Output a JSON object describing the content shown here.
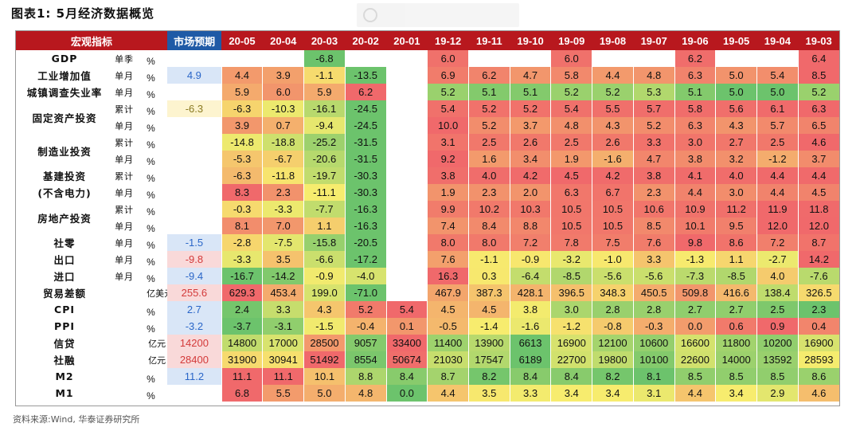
{
  "title": "图表1:  5月经济数据概览",
  "source": "资料来源:Wind, 华泰证券研究所",
  "header": {
    "indicator": "宏观指标",
    "expectation": "市场预期",
    "periods": [
      "20-05",
      "20-04",
      "20-03",
      "20-02",
      "20-01",
      "19-12",
      "19-11",
      "19-10",
      "19-09",
      "19-08",
      "19-07",
      "19-06",
      "19-05",
      "19-04",
      "19-03"
    ]
  },
  "colors": {
    "header_red": "#b8181e",
    "header_blue": "#1f5aa6",
    "low_green": "#6cc36c",
    "mid_yellow": "#f7ec6e",
    "high_red": "#f0696b",
    "expect_blue_bg": "#d9e6f7",
    "expect_red_bg": "#f9d9d9",
    "expect_yellow_bg": "#fdf4cf",
    "expect_text_blue": "#2a66c8",
    "expect_text_red": "#d33a3a",
    "expect_text_olive": "#8a7a22"
  },
  "rows": [
    {
      "indicator": "GDP",
      "freq": "单季",
      "unit": "%",
      "expect": "",
      "values": [
        "",
        "",
        "-6.8",
        "",
        "",
        "6.0",
        "",
        "",
        "6.0",
        "",
        "",
        "6.2",
        "",
        "",
        "6.4"
      ]
    },
    {
      "indicator": "工业增加值",
      "freq": "单月",
      "unit": "%",
      "expect": "4.9",
      "values": [
        "4.4",
        "3.9",
        "-1.1",
        "-13.5",
        "",
        "6.9",
        "6.2",
        "4.7",
        "5.8",
        "4.4",
        "4.8",
        "6.3",
        "5.0",
        "5.4",
        "8.5"
      ]
    },
    {
      "indicator": "城镇调查失业率",
      "freq": "单月",
      "unit": "%",
      "expect": "",
      "values": [
        "5.9",
        "6.0",
        "5.9",
        "6.2",
        "",
        "5.2",
        "5.1",
        "5.1",
        "5.2",
        "5.2",
        "5.3",
        "5.1",
        "5.0",
        "5.0",
        "5.2"
      ]
    },
    {
      "indicator": "固定资产投资",
      "freq": "累计",
      "unit": "%",
      "expect": "-6.3",
      "values": [
        "-6.3",
        "-10.3",
        "-16.1",
        "-24.5",
        "",
        "5.4",
        "5.2",
        "5.2",
        "5.4",
        "5.5",
        "5.7",
        "5.8",
        "5.6",
        "6.1",
        "6.3"
      ]
    },
    {
      "indicator": "",
      "freq": "单月",
      "unit": "%",
      "expect": "",
      "values": [
        "3.9",
        "0.7",
        "-9.4",
        "-24.5",
        "",
        "10.0",
        "5.2",
        "3.7",
        "4.8",
        "4.3",
        "5.2",
        "6.3",
        "4.3",
        "5.7",
        "6.5"
      ]
    },
    {
      "indicator": "制造业投资",
      "freq": "累计",
      "unit": "%",
      "expect": "",
      "values": [
        "-14.8",
        "-18.8",
        "-25.2",
        "-31.5",
        "",
        "3.1",
        "2.5",
        "2.6",
        "2.5",
        "2.6",
        "3.3",
        "3.0",
        "2.7",
        "2.5",
        "4.6"
      ]
    },
    {
      "indicator": "",
      "freq": "单月",
      "unit": "%",
      "expect": "",
      "values": [
        "-5.3",
        "-6.7",
        "-20.6",
        "-31.5",
        "",
        "9.2",
        "1.6",
        "3.4",
        "1.9",
        "-1.6",
        "4.7",
        "3.8",
        "3.2",
        "-1.2",
        "3.7"
      ]
    },
    {
      "indicator": "基建投资",
      "freq": "累计",
      "unit": "%",
      "expect": "",
      "values": [
        "-6.3",
        "-11.8",
        "-19.7",
        "-30.3",
        "",
        "3.8",
        "4.0",
        "4.2",
        "4.5",
        "4.2",
        "3.8",
        "4.1",
        "4.0",
        "4.4",
        "4.4"
      ]
    },
    {
      "indicator": "(不含电力)",
      "freq": "单月",
      "unit": "%",
      "expect": "",
      "values": [
        "8.3",
        "2.3",
        "-11.1",
        "-30.3",
        "",
        "1.9",
        "2.3",
        "2.0",
        "6.3",
        "6.7",
        "2.3",
        "4.4",
        "3.0",
        "4.4",
        "4.5"
      ]
    },
    {
      "indicator": "房地产投资",
      "freq": "累计",
      "unit": "%",
      "expect": "",
      "values": [
        "-0.3",
        "-3.3",
        "-7.7",
        "-16.3",
        "",
        "9.9",
        "10.2",
        "10.3",
        "10.5",
        "10.5",
        "10.6",
        "10.9",
        "11.2",
        "11.9",
        "11.8"
      ]
    },
    {
      "indicator": "",
      "freq": "单月",
      "unit": "%",
      "expect": "",
      "values": [
        "8.1",
        "7.0",
        "1.1",
        "-16.3",
        "",
        "7.4",
        "8.4",
        "8.8",
        "10.5",
        "10.5",
        "8.5",
        "10.1",
        "9.5",
        "12.0",
        "12.0"
      ]
    },
    {
      "indicator": "社零",
      "freq": "单月",
      "unit": "%",
      "expect": "-1.5",
      "values": [
        "-2.8",
        "-7.5",
        "-15.8",
        "-20.5",
        "",
        "8.0",
        "8.0",
        "7.2",
        "7.8",
        "7.5",
        "7.6",
        "9.8",
        "8.6",
        "7.2",
        "8.7"
      ]
    },
    {
      "indicator": "出口",
      "freq": "单月",
      "unit": "%",
      "expect": "-9.8",
      "values": [
        "-3.3",
        "3.5",
        "-6.6",
        "-17.2",
        "",
        "7.6",
        "-1.1",
        "-0.9",
        "-3.2",
        "-1.0",
        "3.3",
        "-1.3",
        "1.1",
        "-2.7",
        "14.2"
      ]
    },
    {
      "indicator": "进口",
      "freq": "单月",
      "unit": "%",
      "expect": "-9.4",
      "values": [
        "-16.7",
        "-14.2",
        "-0.9",
        "-4.0",
        "",
        "16.3",
        "0.3",
        "-6.4",
        "-8.5",
        "-5.6",
        "-5.6",
        "-7.3",
        "-8.5",
        "4.0",
        "-7.6"
      ]
    },
    {
      "indicator": "贸易差额",
      "freq": "",
      "unit": "亿美元",
      "expect": "255.6",
      "values": [
        "629.3",
        "453.4",
        "199.0",
        "-71.0",
        "",
        "467.9",
        "387.3",
        "428.1",
        "396.5",
        "348.3",
        "450.5",
        "509.8",
        "416.6",
        "138.4",
        "326.5"
      ]
    },
    {
      "indicator": "CPI",
      "freq": "",
      "unit": "%",
      "expect": "2.7",
      "values": [
        "2.4",
        "3.3",
        "4.3",
        "5.2",
        "5.4",
        "4.5",
        "4.5",
        "3.8",
        "3.0",
        "2.8",
        "2.8",
        "2.7",
        "2.7",
        "2.5",
        "2.3"
      ]
    },
    {
      "indicator": "PPI",
      "freq": "",
      "unit": "%",
      "expect": "-3.2",
      "values": [
        "-3.7",
        "-3.1",
        "-1.5",
        "-0.4",
        "0.1",
        "-0.5",
        "-1.4",
        "-1.6",
        "-1.2",
        "-0.8",
        "-0.3",
        "0.0",
        "0.6",
        "0.9",
        "0.4"
      ]
    },
    {
      "indicator": "信贷",
      "freq": "",
      "unit": "亿元",
      "expect": "14200",
      "values": [
        "14800",
        "17000",
        "28500",
        "9057",
        "33400",
        "11400",
        "13900",
        "6613",
        "16900",
        "12100",
        "10600",
        "16600",
        "11800",
        "10200",
        "16900"
      ]
    },
    {
      "indicator": "社融",
      "freq": "",
      "unit": "亿元",
      "expect": "28400",
      "values": [
        "31900",
        "30941",
        "51492",
        "8554",
        "50674",
        "21030",
        "17547",
        "6189",
        "22700",
        "19800",
        "10100",
        "22600",
        "14000",
        "13592",
        "28593"
      ]
    },
    {
      "indicator": "M2",
      "freq": "",
      "unit": "%",
      "expect": "11.2",
      "values": [
        "11.1",
        "11.1",
        "10.1",
        "8.8",
        "8.4",
        "8.7",
        "8.2",
        "8.4",
        "8.4",
        "8.2",
        "8.1",
        "8.5",
        "8.5",
        "8.5",
        "8.6"
      ]
    },
    {
      "indicator": "M1",
      "freq": "",
      "unit": "%",
      "expect": "",
      "values": [
        "6.8",
        "5.5",
        "5.0",
        "4.8",
        "0.0",
        "4.4",
        "3.5",
        "3.3",
        "3.4",
        "3.4",
        "3.1",
        "4.4",
        "3.4",
        "2.9",
        "4.6"
      ]
    }
  ]
}
